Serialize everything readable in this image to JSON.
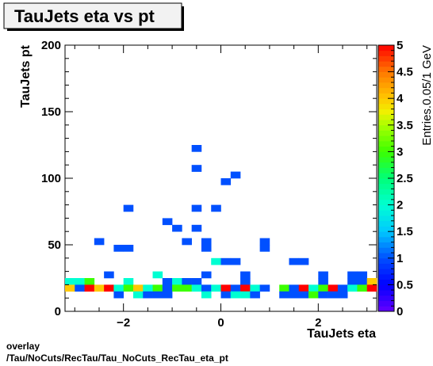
{
  "chart_data": {
    "type": "heatmap",
    "title": "TauJets eta vs pt",
    "xlabel": "TauJets eta",
    "ylabel": "TauJets pt",
    "zlabel": "Entries.0.05/1 GeV",
    "xlim": [
      -3.2,
      3.2
    ],
    "ylim": [
      0,
      200
    ],
    "zlim": [
      0,
      5
    ],
    "x_ticks": [
      -2,
      0,
      2
    ],
    "x_tick_labels": [
      "−2",
      "0",
      "2"
    ],
    "y_ticks": [
      0,
      50,
      100,
      150,
      200
    ],
    "y_tick_labels": [
      "0",
      "50",
      "100",
      "150",
      "200"
    ],
    "z_ticks": [
      0,
      0.5,
      1,
      1.5,
      2,
      2.5,
      3,
      3.5,
      4,
      4.5,
      5
    ],
    "z_tick_labels": [
      "0",
      "0.5",
      "1",
      "1.5",
      "2",
      "2.5",
      "3",
      "3.5",
      "4",
      "4.5",
      "5"
    ],
    "bin_width_x": 0.2,
    "bin_height_y": 5,
    "bins": [
      [
        -0.6,
        120,
        1
      ],
      [
        -0.6,
        105,
        1
      ],
      [
        0.0,
        95,
        1
      ],
      [
        0.2,
        100,
        1
      ],
      [
        -2.0,
        75,
        1
      ],
      [
        -0.6,
        75,
        1
      ],
      [
        -0.2,
        75,
        1
      ],
      [
        -1.2,
        65,
        1
      ],
      [
        -1.0,
        60,
        1
      ],
      [
        -0.6,
        60,
        1
      ],
      [
        -2.6,
        50,
        1
      ],
      [
        -0.8,
        50,
        1
      ],
      [
        -0.4,
        50,
        1
      ],
      [
        0.8,
        50,
        1
      ],
      [
        -2.2,
        45,
        1
      ],
      [
        -2.0,
        45,
        1
      ],
      [
        -0.4,
        45,
        1
      ],
      [
        0.8,
        45,
        1
      ],
      [
        -0.2,
        35,
        2
      ],
      [
        0.0,
        35,
        1
      ],
      [
        0.2,
        35,
        1
      ],
      [
        1.4,
        35,
        1
      ],
      [
        1.6,
        35,
        1
      ],
      [
        -2.4,
        25,
        1
      ],
      [
        -1.4,
        25,
        2
      ],
      [
        -0.4,
        25,
        1
      ],
      [
        0.4,
        25,
        1
      ],
      [
        2.0,
        25,
        1
      ],
      [
        2.6,
        25,
        1
      ],
      [
        2.8,
        25,
        1
      ],
      [
        -3.2,
        20,
        2
      ],
      [
        -3.0,
        20,
        2
      ],
      [
        -2.8,
        20,
        3
      ],
      [
        -2.0,
        20,
        2
      ],
      [
        -1.2,
        20,
        1
      ],
      [
        -1.0,
        20,
        2
      ],
      [
        -0.8,
        20,
        1
      ],
      [
        -0.6,
        20,
        1
      ],
      [
        0.4,
        20,
        1
      ],
      [
        2.0,
        20,
        1
      ],
      [
        2.6,
        20,
        1
      ],
      [
        2.8,
        20,
        1
      ],
      [
        3.0,
        20,
        4
      ],
      [
        -3.2,
        15,
        4
      ],
      [
        -3.0,
        15,
        1
      ],
      [
        -2.8,
        15,
        5
      ],
      [
        -2.6,
        15,
        4
      ],
      [
        -2.4,
        15,
        5
      ],
      [
        -2.2,
        15,
        2
      ],
      [
        -2.0,
        15,
        3
      ],
      [
        -1.8,
        15,
        4
      ],
      [
        -1.6,
        15,
        2
      ],
      [
        -1.4,
        15,
        3
      ],
      [
        -1.2,
        15,
        1
      ],
      [
        -1.0,
        15,
        3
      ],
      [
        -0.8,
        15,
        3
      ],
      [
        -0.6,
        15,
        2
      ],
      [
        -0.4,
        15,
        1
      ],
      [
        -0.2,
        15,
        2
      ],
      [
        0.0,
        15,
        5
      ],
      [
        0.2,
        15,
        1
      ],
      [
        0.4,
        15,
        5
      ],
      [
        0.6,
        15,
        2
      ],
      [
        0.8,
        15,
        1
      ],
      [
        1.2,
        15,
        3
      ],
      [
        1.4,
        15,
        1
      ],
      [
        1.6,
        15,
        5
      ],
      [
        1.8,
        15,
        2
      ],
      [
        2.0,
        15,
        3
      ],
      [
        2.2,
        15,
        5
      ],
      [
        2.4,
        15,
        1
      ],
      [
        2.6,
        15,
        2
      ],
      [
        2.8,
        15,
        3
      ],
      [
        3.0,
        15,
        5
      ],
      [
        -2.2,
        10,
        1
      ],
      [
        -1.8,
        10,
        2
      ],
      [
        -1.6,
        10,
        1
      ],
      [
        -1.4,
        10,
        1
      ],
      [
        -1.2,
        10,
        1
      ],
      [
        -0.4,
        10,
        2
      ],
      [
        0.0,
        10,
        1
      ],
      [
        0.2,
        10,
        2
      ],
      [
        0.4,
        10,
        2
      ],
      [
        0.6,
        10,
        1
      ],
      [
        1.2,
        10,
        1
      ],
      [
        1.4,
        10,
        1
      ],
      [
        1.6,
        10,
        1
      ],
      [
        1.8,
        10,
        3
      ],
      [
        2.0,
        10,
        1
      ],
      [
        2.2,
        10,
        1
      ],
      [
        2.4,
        10,
        1
      ]
    ]
  },
  "footer": {
    "line1": "overlay",
    "line2": "/Tau/NoCuts/RecTau/Tau_NoCuts_RecTau_eta_pt"
  }
}
